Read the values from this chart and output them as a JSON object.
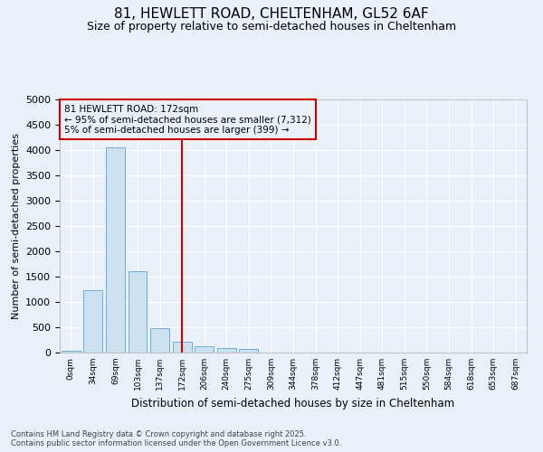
{
  "title1": "81, HEWLETT ROAD, CHELTENHAM, GL52 6AF",
  "title2": "Size of property relative to semi-detached houses in Cheltenham",
  "xlabel": "Distribution of semi-detached houses by size in Cheltenham",
  "ylabel": "Number of semi-detached properties",
  "footnote": "Contains HM Land Registry data © Crown copyright and database right 2025.\nContains public sector information licensed under the Open Government Licence v3.0.",
  "bin_labels": [
    "0sqm",
    "34sqm",
    "69sqm",
    "103sqm",
    "137sqm",
    "172sqm",
    "206sqm",
    "240sqm",
    "275sqm",
    "309sqm",
    "344sqm",
    "378sqm",
    "412sqm",
    "447sqm",
    "481sqm",
    "515sqm",
    "550sqm",
    "584sqm",
    "618sqm",
    "653sqm",
    "687sqm"
  ],
  "bar_values": [
    30,
    1230,
    4050,
    1600,
    480,
    220,
    130,
    85,
    65,
    5,
    0,
    0,
    0,
    0,
    0,
    0,
    0,
    0,
    0,
    0,
    0
  ],
  "bar_color": "#cde0f0",
  "bar_edge_color": "#6aaed6",
  "vline_index": 5,
  "vline_color": "#cc0000",
  "annotation_title": "81 HEWLETT ROAD: 172sqm",
  "annotation_line1": "← 95% of semi-detached houses are smaller (7,312)",
  "annotation_line2": "5% of semi-detached houses are larger (399) →",
  "annotation_box_color": "#cc0000",
  "ylim": [
    0,
    5000
  ],
  "yticks": [
    0,
    500,
    1000,
    1500,
    2000,
    2500,
    3000,
    3500,
    4000,
    4500,
    5000
  ],
  "background_color": "#eaf0f8",
  "grid_color": "#ffffff"
}
